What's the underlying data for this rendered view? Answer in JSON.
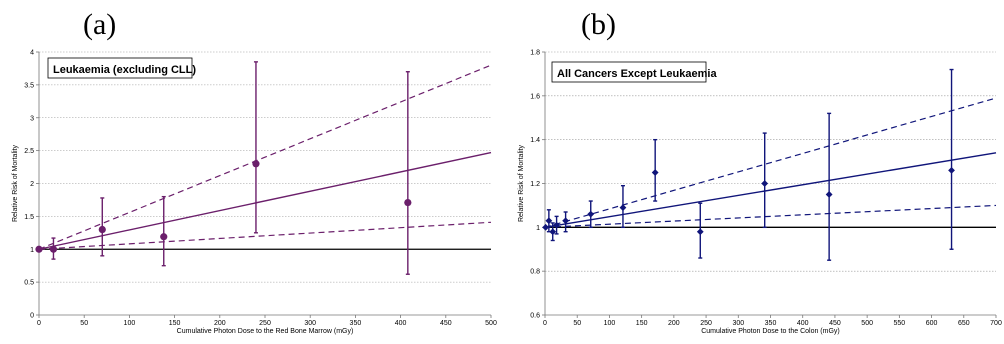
{
  "panels": [
    {
      "label": "(a)",
      "chart_data": {
        "type": "scatter",
        "title": "Leukaemia (excluding CLL)",
        "xlabel": "Cumulative Photon Dose to the Red Bone Marrow (mGy)",
        "ylabel": "Relative Risk of Mortality",
        "xlim": [
          0,
          500
        ],
        "ylim": [
          0,
          4
        ],
        "xticks": [
          0,
          50,
          100,
          150,
          200,
          250,
          300,
          350,
          400,
          450,
          500
        ],
        "yticks": [
          0,
          0.5,
          1,
          1.5,
          2,
          2.5,
          3,
          3.5,
          4
        ],
        "grid": "horizontal-dotted",
        "color": "#6b1f6b",
        "baseline": 1,
        "fit": {
          "x": [
            0,
            500
          ],
          "y": [
            1,
            2.47
          ]
        },
        "ci_upper": {
          "x": [
            0,
            500
          ],
          "y": [
            1,
            3.8
          ]
        },
        "ci_lower": {
          "x": [
            0,
            500
          ],
          "y": [
            1,
            1.41
          ]
        },
        "points": [
          {
            "x": 0,
            "y": 1.0,
            "lo": 1.0,
            "hi": 1.0
          },
          {
            "x": 16,
            "y": 1.0,
            "lo": 0.85,
            "hi": 1.17
          },
          {
            "x": 70,
            "y": 1.3,
            "lo": 0.9,
            "hi": 1.78
          },
          {
            "x": 138,
            "y": 1.19,
            "lo": 0.75,
            "hi": 1.8
          },
          {
            "x": 240,
            "y": 2.3,
            "lo": 1.25,
            "hi": 3.85
          },
          {
            "x": 408,
            "y": 1.71,
            "lo": 0.62,
            "hi": 3.7
          }
        ]
      }
    },
    {
      "label": "(b)",
      "chart_data": {
        "type": "scatter",
        "title": "All Cancers Except Leukaemia",
        "xlabel": "Cumulative Photon Dose to the Colon (mGy)",
        "ylabel": "Relative Risk of Mortality",
        "xlim": [
          0,
          700
        ],
        "ylim": [
          0.6,
          1.8
        ],
        "xticks": [
          0,
          50,
          100,
          150,
          200,
          250,
          300,
          350,
          400,
          450,
          500,
          550,
          600,
          650,
          700
        ],
        "yticks": [
          0.6,
          0.8,
          1,
          1.2,
          1.4,
          1.6,
          1.8
        ],
        "grid": "horizontal-dotted",
        "color": "#10157a",
        "baseline": 1,
        "fit": {
          "x": [
            0,
            700
          ],
          "y": [
            1,
            1.34
          ]
        },
        "ci_upper": {
          "x": [
            0,
            700
          ],
          "y": [
            1,
            1.59
          ]
        },
        "ci_lower": {
          "x": [
            0,
            700
          ],
          "y": [
            1,
            1.1
          ]
        },
        "points": [
          {
            "x": 1,
            "y": 1.0,
            "lo": 1.0,
            "hi": 1.0
          },
          {
            "x": 6,
            "y": 1.03,
            "lo": 0.98,
            "hi": 1.08
          },
          {
            "x": 12,
            "y": 0.98,
            "lo": 0.94,
            "hi": 1.02
          },
          {
            "x": 18,
            "y": 1.01,
            "lo": 0.97,
            "hi": 1.05
          },
          {
            "x": 32,
            "y": 1.03,
            "lo": 0.98,
            "hi": 1.07
          },
          {
            "x": 71,
            "y": 1.06,
            "lo": 1.0,
            "hi": 1.12
          },
          {
            "x": 121,
            "y": 1.09,
            "lo": 1.0,
            "hi": 1.19
          },
          {
            "x": 171,
            "y": 1.25,
            "lo": 1.12,
            "hi": 1.4
          },
          {
            "x": 241,
            "y": 0.98,
            "lo": 0.86,
            "hi": 1.11
          },
          {
            "x": 341,
            "y": 1.2,
            "lo": 1.0,
            "hi": 1.43
          },
          {
            "x": 441,
            "y": 1.15,
            "lo": 0.85,
            "hi": 1.52
          },
          {
            "x": 631,
            "y": 1.26,
            "lo": 0.9,
            "hi": 1.72
          }
        ]
      }
    }
  ]
}
